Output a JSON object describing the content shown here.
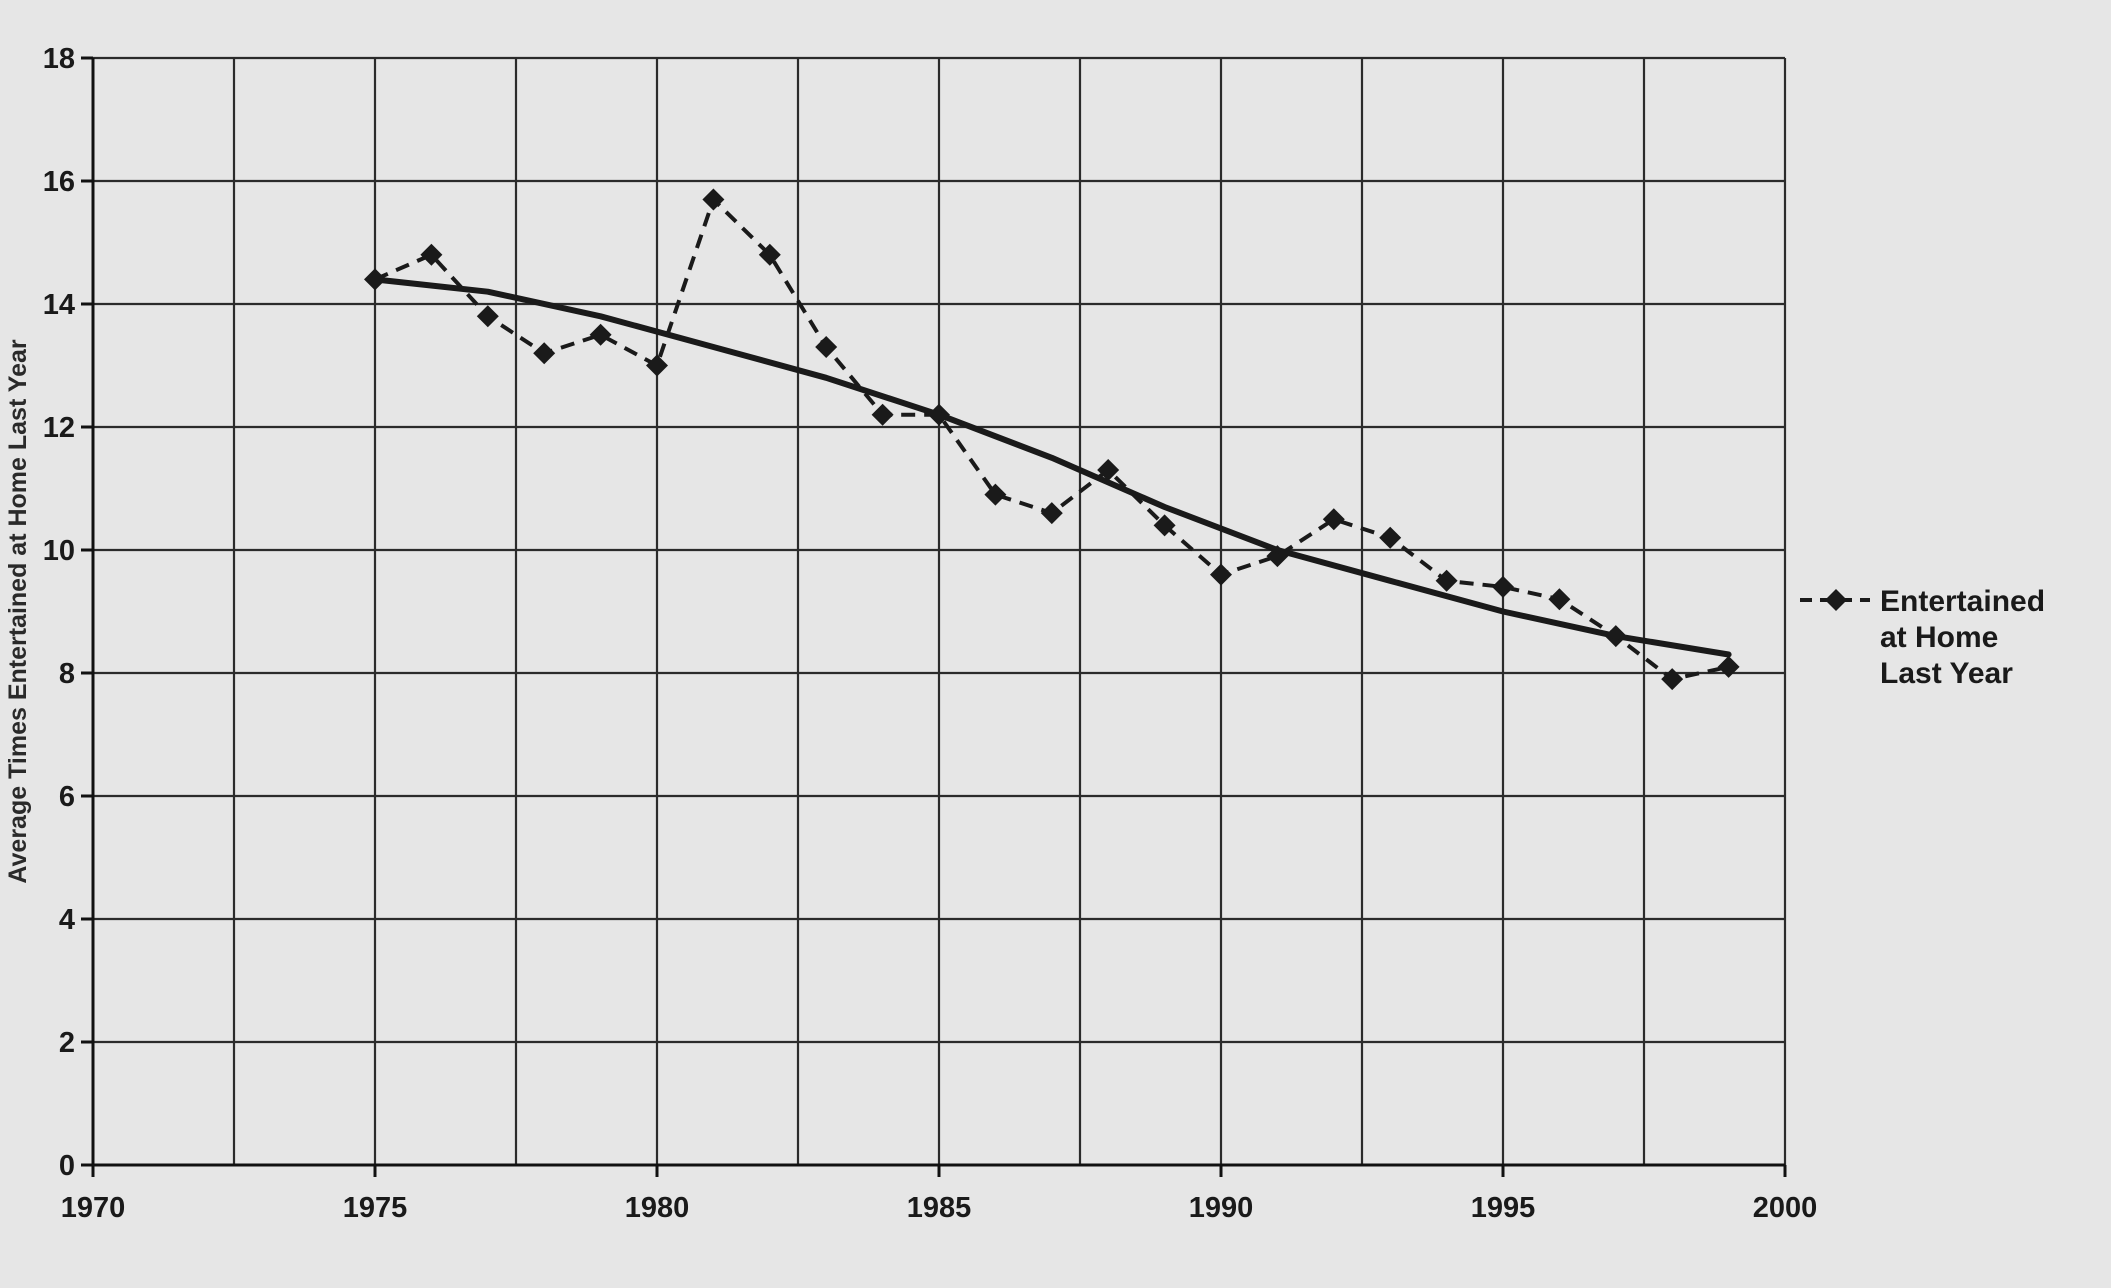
{
  "chart_data": {
    "type": "line",
    "title": "",
    "xlabel": "",
    "ylabel": "Average Times Entertained at Home Last Year",
    "xlim": [
      1970,
      2000
    ],
    "ylim": [
      0,
      18
    ],
    "x_ticks": [
      1970,
      1975,
      1980,
      1985,
      1990,
      1995,
      2000
    ],
    "y_ticks": [
      0,
      2,
      4,
      6,
      8,
      10,
      12,
      14,
      16,
      18
    ],
    "grid": true,
    "legend_position": "right",
    "series": [
      {
        "name": "Entertained at Home Last Year",
        "style": "dashed-diamond",
        "color": "#1a1a1a",
        "x": [
          1975,
          1976,
          1977,
          1978,
          1979,
          1980,
          1981,
          1982,
          1983,
          1984,
          1985,
          1986,
          1987,
          1988,
          1989,
          1990,
          1991,
          1992,
          1993,
          1994,
          1995,
          1996,
          1997,
          1998,
          1999
        ],
        "y": [
          14.4,
          14.8,
          13.8,
          13.2,
          13.5,
          13.0,
          15.7,
          14.8,
          13.3,
          12.2,
          12.2,
          10.9,
          10.6,
          11.3,
          10.4,
          9.6,
          9.9,
          10.5,
          10.2,
          9.5,
          9.4,
          9.2,
          8.6,
          7.9,
          8.1
        ]
      },
      {
        "name": "",
        "style": "solid-trend",
        "color": "#1a1a1a",
        "x": [
          1975,
          1977,
          1979,
          1981,
          1983,
          1985,
          1987,
          1989,
          1991,
          1993,
          1995,
          1997,
          1999
        ],
        "y": [
          14.4,
          14.2,
          13.8,
          13.3,
          12.8,
          12.2,
          11.5,
          10.7,
          10.0,
          9.5,
          9.0,
          8.6,
          8.3
        ]
      }
    ]
  },
  "legend": {
    "lines": [
      "Entertained",
      "at Home",
      "Last Year"
    ]
  }
}
